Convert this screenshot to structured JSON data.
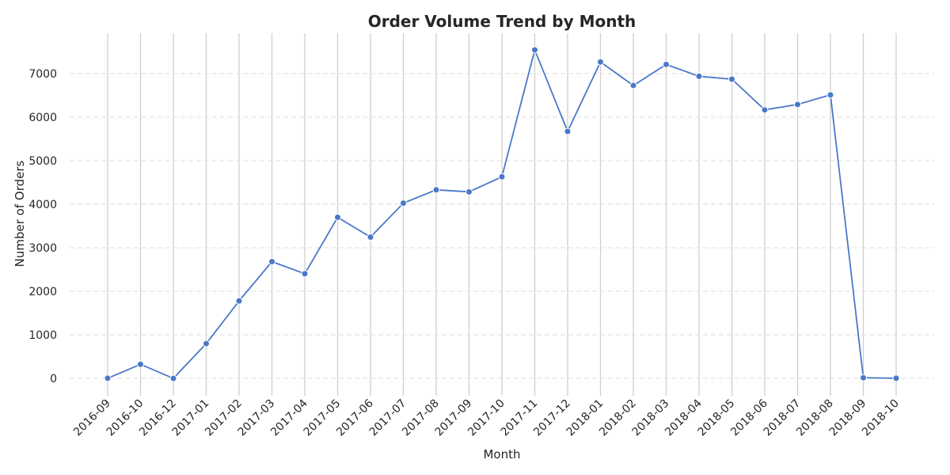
{
  "chart_data": {
    "type": "line",
    "title": "Order Volume Trend by Month",
    "xlabel": "Month",
    "ylabel": "Number of Orders",
    "categories": [
      "2016-09",
      "2016-10",
      "2016-12",
      "2017-01",
      "2017-02",
      "2017-03",
      "2017-04",
      "2017-05",
      "2017-06",
      "2017-07",
      "2017-08",
      "2017-09",
      "2017-10",
      "2017-11",
      "2017-12",
      "2018-01",
      "2018-02",
      "2018-03",
      "2018-04",
      "2018-05",
      "2018-06",
      "2018-07",
      "2018-08",
      "2018-09",
      "2018-10"
    ],
    "values": [
      4,
      324,
      1,
      800,
      1780,
      2682,
      2404,
      3700,
      3245,
      4026,
      4331,
      4285,
      4631,
      7544,
      5673,
      7269,
      6728,
      7211,
      6939,
      6873,
      6167,
      6292,
      6512,
      16,
      4
    ],
    "yticks": [
      0,
      1000,
      2000,
      3000,
      4000,
      5000,
      6000,
      7000
    ],
    "ylim": [
      -500,
      7900
    ],
    "grid": true,
    "color": "#4a78c9"
  }
}
